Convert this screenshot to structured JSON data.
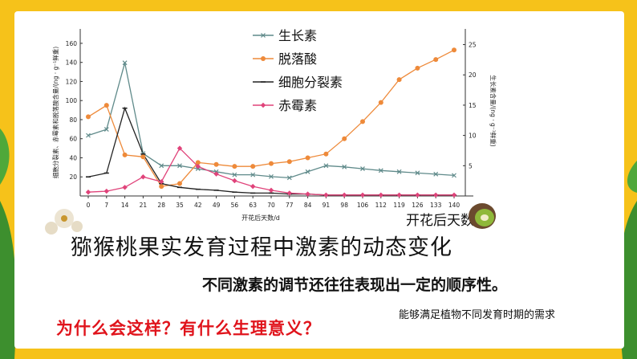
{
  "slide": {
    "caption": "猕猴桃果实发育过程中激素的动态变化",
    "subtitle": "不同激素的调节还往往表现出一定的顺序性。",
    "question": "为什么会这样？有什么生理意义？",
    "answer": "能够满足植物不同发育时期的需求"
  },
  "colors": {
    "background": "#f6c21a",
    "card": "#ffffff",
    "question": "#e0141c"
  },
  "chart_data": {
    "type": "line",
    "x_label": "开花后天数/d",
    "x_label_large": "开花后天数/d",
    "y_left_label": "细胞分裂素、赤霉素和脱落酸含量/(ng · g⁻¹鲜重)",
    "y_right_label": "生长素含量/(ng · g⁻¹鲜重)",
    "categories": [
      "0",
      "7",
      "14",
      "21",
      "28",
      "35",
      "42",
      "49",
      "56",
      "63",
      "70",
      "77",
      "84",
      "91",
      "98",
      "106",
      "112",
      "119",
      "126",
      "133",
      "140"
    ],
    "x_tick_labels": [
      "0",
      "7",
      "14",
      "21",
      "28",
      "35",
      "42",
      "49",
      "56",
      "63",
      "70",
      "77",
      "84",
      "91",
      "98",
      "106",
      "112",
      "119",
      "126",
      "133",
      "140"
    ],
    "y_left_ticks": [
      "20",
      "40",
      "60",
      "80",
      "100",
      "120",
      "140",
      "160"
    ],
    "y_right_ticks": [
      "5",
      "10",
      "15",
      "20",
      "25"
    ],
    "ylim_left": [
      0,
      165
    ],
    "ylim_right": [
      0,
      26
    ],
    "series": [
      {
        "name": "生长素",
        "axis": "right",
        "color": "#5f8a8a",
        "marker": "x",
        "values": [
          10,
          11,
          22,
          7,
          5,
          5,
          4.5,
          4,
          3.5,
          3.5,
          3.2,
          3,
          4,
          5,
          4.8,
          4.5,
          4.2,
          4,
          3.8,
          3.6,
          3.4
        ]
      },
      {
        "name": "脱落酸",
        "axis": "left",
        "color": "#ee8a3a",
        "marker": "circle",
        "values": [
          83,
          95,
          43,
          41,
          10,
          13,
          35,
          33,
          31,
          31,
          34,
          36,
          40,
          44,
          60,
          78,
          98,
          122,
          134,
          143,
          153
        ]
      },
      {
        "name": "细胞分裂素",
        "axis": "left",
        "color": "#222222",
        "marker": "dash",
        "values": [
          20,
          24,
          92,
          44,
          13,
          9,
          7,
          6,
          4,
          3,
          3,
          2,
          2,
          1,
          1,
          1,
          1,
          1,
          1,
          1,
          1
        ]
      },
      {
        "name": "赤霉素",
        "axis": "left",
        "color": "#e0437a",
        "marker": "diamond",
        "values": [
          4,
          5,
          9,
          20,
          15,
          50,
          31,
          23,
          16,
          10,
          6,
          3,
          2,
          1,
          1,
          1,
          1,
          1,
          1,
          1,
          1
        ]
      }
    ]
  }
}
